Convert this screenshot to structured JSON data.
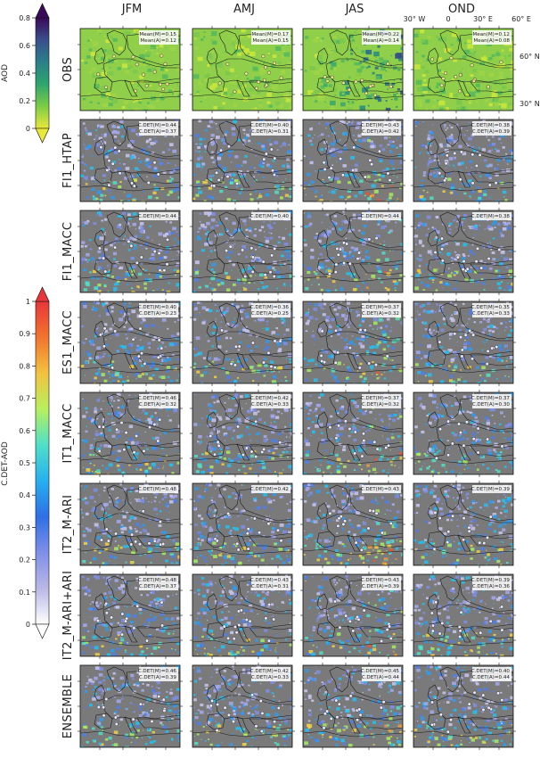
{
  "columns": [
    "JFM",
    "AMJ",
    "JAS",
    "OND"
  ],
  "rows": [
    {
      "label": "OBS",
      "stats": [
        [
          "Mean(M)=0.15",
          "Mean(A)=0.12"
        ],
        [
          "Mean(M)=0.17",
          "Mean(A)=0.15"
        ],
        [
          "Mean(M)=0.22",
          "Mean(A)=0.14"
        ],
        [
          "Mean(M)=0.12",
          "Mean(A)=0.08"
        ]
      ]
    },
    {
      "label": "FI1_HTAP",
      "stats": [
        [
          "C.DET(M)=0.44",
          "C.DET(A)=0.37"
        ],
        [
          "C.DET(M)=0.40",
          "C.DET(A)=0.31"
        ],
        [
          "C.DET(M)=0.43",
          "C.DET(A)=0.42"
        ],
        [
          "C.DET(M)=0.38",
          "C.DET(A)=0.39"
        ]
      ]
    },
    {
      "label": "FI1_MACC",
      "stats": [
        [
          "C.DET(M)=0.44"
        ],
        [
          "C.DET(M)=0.40"
        ],
        [
          "C.DET(M)=0.44"
        ],
        [
          "C.DET(M)=0.38"
        ]
      ]
    },
    {
      "label": "ES1_MACC",
      "stats": [
        [
          "C.DET(M)=0.40",
          "C.DET(A)=0.23"
        ],
        [
          "C.DET(M)=0.36",
          "C.DET(A)=0.25"
        ],
        [
          "C.DET(M)=0.37",
          "C.DET(A)=0.32"
        ],
        [
          "C.DET(M)=0.35",
          "C.DET(A)=0.33"
        ]
      ]
    },
    {
      "label": "IT1_MACC",
      "stats": [
        [
          "C.DET(M)=0.46",
          "C.DET(A)=0.32"
        ],
        [
          "C.DET(M)=0.42",
          "C.DET(A)=0.33"
        ],
        [
          "C.DET(M)=0.37",
          "C.DET(A)=0.32"
        ],
        [
          "C.DET(M)=0.37",
          "C.DET(A)=0.30"
        ]
      ]
    },
    {
      "label": "IT2_M-ARI",
      "stats": [
        [
          "C.DET(M)=0.48"
        ],
        [
          "C.DET(M)=0.42"
        ],
        [
          "C.DET(M)=0.43"
        ],
        [
          "C.DET(M)=0.39"
        ]
      ]
    },
    {
      "label": "IT2_M-ARI+ARI",
      "stats": [
        [
          "C.DET(M)=0.48",
          "C.DET(A)=0.37"
        ],
        [
          "C.DET(M)=0.43",
          "C.DET(A)=0.31"
        ],
        [
          "C.DET(M)=0.43",
          "C.DET(A)=0.39"
        ],
        [
          "C.DET(M)=0.39",
          "C.DET(A)=0.36"
        ]
      ]
    },
    {
      "label": "ENSEMBLE",
      "stats": [
        [
          "C.DET(M)=0.46",
          "C.DET(A)=0.39"
        ],
        [
          "C.DET(M)=0.42",
          "C.DET(A)=0.33"
        ],
        [
          "C.DET(M)=0.45",
          "C.DET(A)=0.44"
        ],
        [
          "C.DET(M)=0.40",
          "C.DET(A)=0.44"
        ]
      ]
    }
  ],
  "map_axes": {
    "lon_labels": [
      "30° W",
      "0",
      "30° E",
      "60° E"
    ],
    "lat_labels": [
      "60° N",
      "30° N"
    ]
  },
  "colorbars": {
    "aod": {
      "label": "AOD",
      "ticks": [
        "0.8",
        "0.6",
        "0.4",
        "0.2",
        "0"
      ],
      "colors": [
        "#3a0a5a",
        "#3a4f8c",
        "#2b7f8a",
        "#2ea56e",
        "#7ccc45",
        "#e8e83a"
      ]
    },
    "cdet": {
      "label": "C.DET-AOD",
      "ticks": [
        "1",
        "0.9",
        "0.8",
        "0.7",
        "0.6",
        "0.5",
        "0.4",
        "0.3",
        "0.2",
        "0.1",
        "0"
      ],
      "colors": [
        "#ffffff",
        "#b9b7e6",
        "#7f8fe8",
        "#2f6fe6",
        "#27b0f0",
        "#4fe0c8",
        "#b8ef5e",
        "#f3c23e",
        "#f2742e",
        "#e8363a"
      ]
    }
  },
  "chart_data": {
    "type": "heatmap",
    "xlabel": "",
    "ylabel": "",
    "categories": [
      "JFM",
      "AMJ",
      "JAS",
      "OND"
    ],
    "series": [
      {
        "name": "OBS Mean(M)",
        "values": [
          0.15,
          0.17,
          0.22,
          0.12
        ]
      },
      {
        "name": "OBS Mean(A)",
        "values": [
          0.12,
          0.15,
          0.14,
          0.08
        ]
      },
      {
        "name": "FI1_HTAP C.DET(M)",
        "values": [
          0.44,
          0.4,
          0.43,
          0.38
        ]
      },
      {
        "name": "FI1_HTAP C.DET(A)",
        "values": [
          0.37,
          0.31,
          0.42,
          0.39
        ]
      },
      {
        "name": "FI1_MACC C.DET(M)",
        "values": [
          0.44,
          0.4,
          0.44,
          0.38
        ]
      },
      {
        "name": "ES1_MACC C.DET(M)",
        "values": [
          0.4,
          0.36,
          0.37,
          0.35
        ]
      },
      {
        "name": "ES1_MACC C.DET(A)",
        "values": [
          0.23,
          0.25,
          0.32,
          0.33
        ]
      },
      {
        "name": "IT1_MACC C.DET(M)",
        "values": [
          0.46,
          0.42,
          0.37,
          0.37
        ]
      },
      {
        "name": "IT1_MACC C.DET(A)",
        "values": [
          0.32,
          0.33,
          0.32,
          0.3
        ]
      },
      {
        "name": "IT2_M-ARI C.DET(M)",
        "values": [
          0.48,
          0.42,
          0.43,
          0.39
        ]
      },
      {
        "name": "IT2_M-ARI+ARI C.DET(M)",
        "values": [
          0.48,
          0.43,
          0.43,
          0.39
        ]
      },
      {
        "name": "IT2_M-ARI+ARI C.DET(A)",
        "values": [
          0.37,
          0.31,
          0.39,
          0.36
        ]
      },
      {
        "name": "ENSEMBLE C.DET(M)",
        "values": [
          0.46,
          0.42,
          0.45,
          0.4
        ]
      },
      {
        "name": "ENSEMBLE C.DET(A)",
        "values": [
          0.39,
          0.33,
          0.44,
          0.44
        ]
      }
    ],
    "colorbar_ranges": {
      "AOD": [
        0,
        0.8
      ],
      "C.DET-AOD": [
        0,
        1
      ]
    }
  }
}
